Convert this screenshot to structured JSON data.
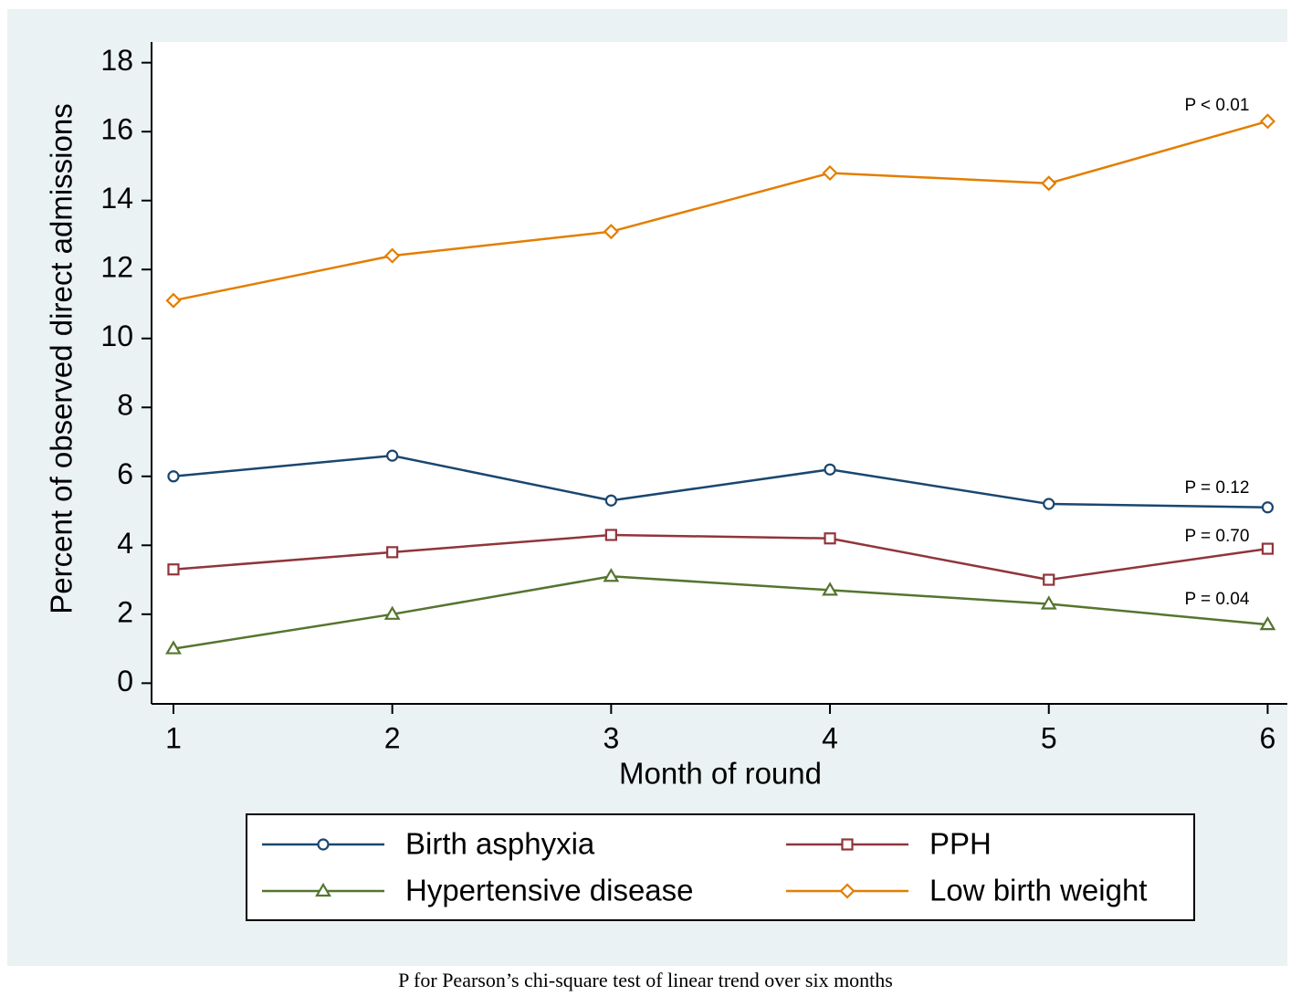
{
  "chart_data": {
    "type": "line",
    "x_label": "Month of round",
    "y_label": "Percent of observed direct admissions",
    "caption": "P for Pearson’s chi-square test of linear trend over six months",
    "x": [
      1,
      2,
      3,
      4,
      5,
      6
    ],
    "xlim": [
      0.9,
      6.09
    ],
    "xticks": [
      1,
      2,
      3,
      4,
      5,
      6
    ],
    "ylim": [
      -0.6,
      18.6
    ],
    "yticks": [
      0,
      2,
      4,
      6,
      8,
      10,
      12,
      14,
      16,
      18
    ],
    "grid": false,
    "legend": "bottom",
    "series": [
      {
        "name": "Birth asphyxia",
        "color": "#1a476f",
        "marker": "circle",
        "values": [
          6.0,
          6.6,
          5.3,
          6.2,
          5.2,
          5.1
        ],
        "annotation": "P = 0.12"
      },
      {
        "name": "PPH",
        "color": "#90353b",
        "marker": "square",
        "values": [
          3.3,
          3.8,
          4.3,
          4.2,
          3.0,
          3.9
        ],
        "annotation": "P = 0.70"
      },
      {
        "name": "Hypertensive disease",
        "color": "#55752f",
        "marker": "triangle",
        "values": [
          1.0,
          2.0,
          3.1,
          2.7,
          2.3,
          1.7
        ],
        "annotation": "P = 0.04"
      },
      {
        "name": "Low birth weight",
        "color": "#e37e00",
        "marker": "diamond",
        "values": [
          11.1,
          12.4,
          13.1,
          14.8,
          14.5,
          16.3
        ],
        "annotation": "P < 0.01"
      }
    ]
  }
}
